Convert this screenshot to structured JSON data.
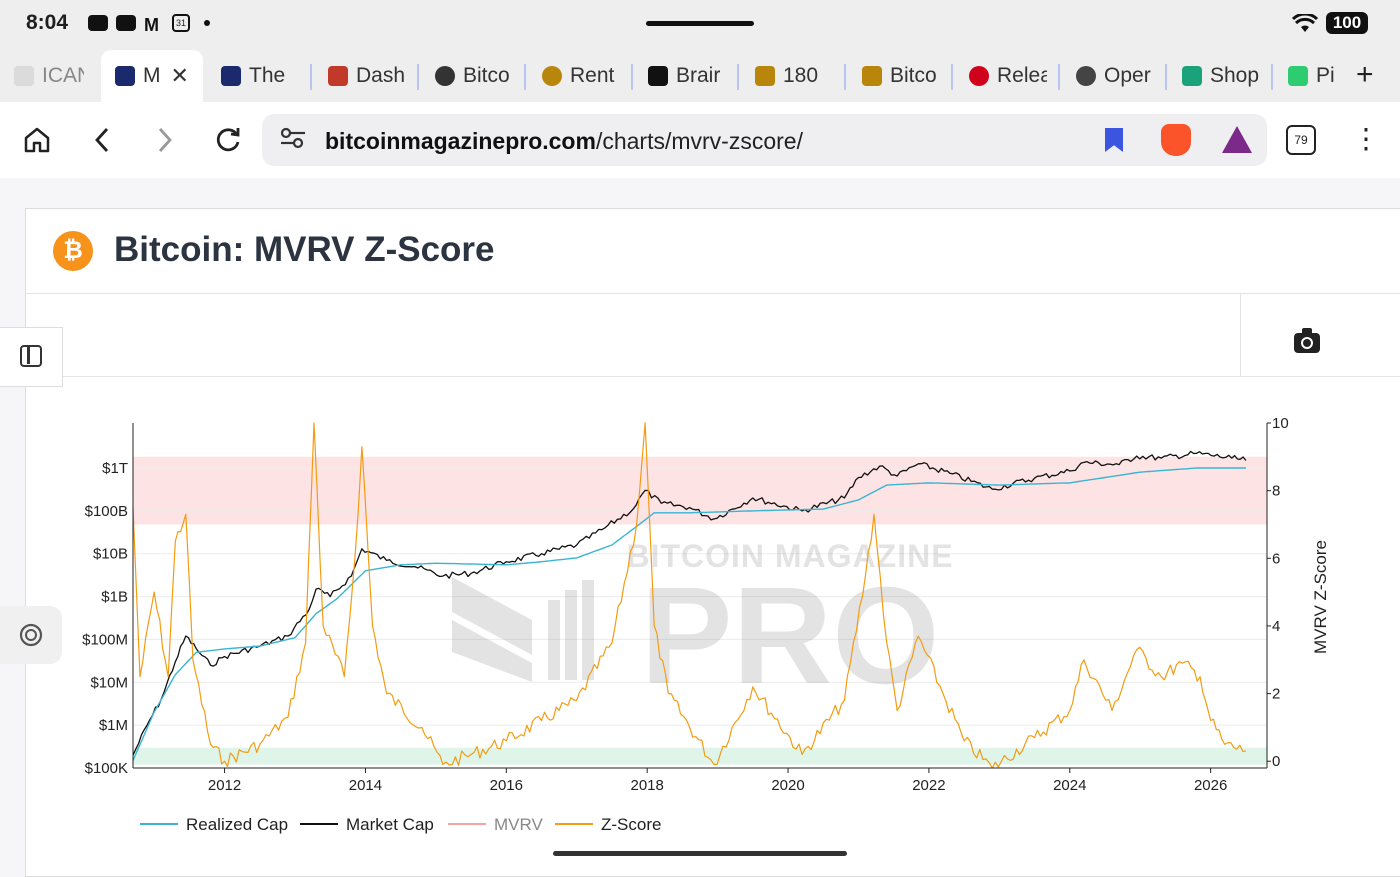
{
  "status_bar": {
    "time": "8:04",
    "battery": "100"
  },
  "tabs": [
    {
      "label": "ICAN",
      "favicon_color": "#cccccc"
    },
    {
      "label": "M",
      "favicon_color": "#1a2a6c",
      "active": true
    },
    {
      "label": "The",
      "favicon_color": "#1a2a6c"
    },
    {
      "label": "Dash",
      "favicon_color": "#c0392b"
    },
    {
      "label": "Bitco",
      "favicon_color": "#333333"
    },
    {
      "label": "Rent",
      "favicon_color": "#b8860b"
    },
    {
      "label": "Brair",
      "favicon_color": "#111111"
    },
    {
      "label": "180",
      "favicon_color": "#b8860b"
    },
    {
      "label": "Bitco",
      "favicon_color": "#b8860b"
    },
    {
      "label": "Relea",
      "favicon_color": "#d0021b"
    },
    {
      "label": "Oper",
      "favicon_color": "#444444"
    },
    {
      "label": "Shop",
      "favicon_color": "#1aa37a"
    },
    {
      "label": "Pi",
      "favicon_color": "#2ecc71"
    }
  ],
  "nav": {
    "url_domain": "bitcoinmagazinepro.com",
    "url_path": "/charts/mvrv-zscore/",
    "tab_count": "79"
  },
  "page": {
    "logo_text": "₿",
    "title": "Bitcoin: MVRV Z-Score",
    "watermark_top": "BITCOIN MAGAZINE",
    "watermark_main": "PRO"
  },
  "colors": {
    "realized_cap": "#3ab4d4",
    "market_cap": "#111111",
    "mvrv": "#f5a3a3",
    "zscore": "#f39c12",
    "top_band": "#fde3e3",
    "bottom_band": "#dff5ea"
  },
  "chart_data": {
    "type": "line",
    "title": "",
    "x_axis": {
      "range": [
        2010.7,
        2026.8
      ],
      "ticks": [
        "2012",
        "2014",
        "2016",
        "2018",
        "2020",
        "2022",
        "2024",
        "2026"
      ]
    },
    "y_left": {
      "scale": "log",
      "range_usd": [
        100000000,
        10000000000000
      ],
      "ticks": [
        "$100K",
        "$1M",
        "$10M",
        "$100M",
        "$1B",
        "$10B",
        "$100B",
        "$1T"
      ]
    },
    "y_right": {
      "label": "MVRV Z-Score",
      "range": [
        -0.2,
        10
      ],
      "ticks": [
        "0",
        "2",
        "4",
        "6",
        "8",
        "10"
      ]
    },
    "bands": {
      "top": [
        7,
        9
      ],
      "bottom": [
        -0.1,
        0.4
      ]
    },
    "legend": [
      "Realized Cap",
      "Market Cap",
      "MVRV",
      "Z-Score"
    ],
    "series": [
      {
        "name": "Market Cap",
        "axis": "left",
        "points": [
          [
            2010.7,
            200000
          ],
          [
            2010.9,
            1000000
          ],
          [
            2011.1,
            4000000
          ],
          [
            2011.3,
            30000000
          ],
          [
            2011.45,
            120000000
          ],
          [
            2011.6,
            60000000
          ],
          [
            2011.8,
            25000000
          ],
          [
            2012.0,
            40000000
          ],
          [
            2012.5,
            70000000
          ],
          [
            2012.9,
            120000000
          ],
          [
            2013.2,
            500000000
          ],
          [
            2013.3,
            1500000000
          ],
          [
            2013.5,
            1000000000
          ],
          [
            2013.8,
            3000000000
          ],
          [
            2013.95,
            13000000000
          ],
          [
            2014.3,
            7000000000
          ],
          [
            2014.7,
            5000000000
          ],
          [
            2015.1,
            3000000000
          ],
          [
            2015.5,
            3500000000
          ],
          [
            2016.0,
            6500000000
          ],
          [
            2016.5,
            10000000000
          ],
          [
            2017.0,
            16000000000
          ],
          [
            2017.4,
            40000000000
          ],
          [
            2017.8,
            110000000000
          ],
          [
            2017.97,
            300000000000
          ],
          [
            2018.2,
            150000000000
          ],
          [
            2018.6,
            120000000000
          ],
          [
            2018.95,
            65000000000
          ],
          [
            2019.5,
            200000000000
          ],
          [
            2020.2,
            100000000000
          ],
          [
            2020.8,
            200000000000
          ],
          [
            2021.0,
            600000000000
          ],
          [
            2021.3,
            1100000000000
          ],
          [
            2021.55,
            650000000000
          ],
          [
            2021.85,
            1250000000000
          ],
          [
            2022.3,
            750000000000
          ],
          [
            2022.9,
            320000000000
          ],
          [
            2023.5,
            580000000000
          ],
          [
            2024.0,
            850000000000
          ],
          [
            2024.2,
            1350000000000
          ],
          [
            2024.7,
            1200000000000
          ],
          [
            2024.95,
            1900000000000
          ],
          [
            2025.3,
            1700000000000
          ],
          [
            2025.8,
            2200000000000
          ],
          [
            2026.3,
            1700000000000
          ],
          [
            2026.5,
            1500000000000
          ]
        ]
      },
      {
        "name": "Realized Cap",
        "axis": "left",
        "points": [
          [
            2010.7,
            150000
          ],
          [
            2011.0,
            2000000
          ],
          [
            2011.3,
            15000000
          ],
          [
            2011.6,
            50000000
          ],
          [
            2012.0,
            60000000
          ],
          [
            2012.5,
            70000000
          ],
          [
            2013.0,
            110000000
          ],
          [
            2013.3,
            400000000
          ],
          [
            2013.6,
            900000000
          ],
          [
            2014.0,
            4000000000
          ],
          [
            2014.5,
            5500000000
          ],
          [
            2015.0,
            6000000000
          ],
          [
            2016.0,
            5500000000
          ],
          [
            2016.5,
            6500000000
          ],
          [
            2017.0,
            8000000000
          ],
          [
            2017.5,
            16000000000
          ],
          [
            2017.9,
            50000000000
          ],
          [
            2018.1,
            90000000000
          ],
          [
            2018.6,
            90000000000
          ],
          [
            2019.5,
            100000000000
          ],
          [
            2020.5,
            110000000000
          ],
          [
            2021.0,
            180000000000
          ],
          [
            2021.4,
            400000000000
          ],
          [
            2022.0,
            450000000000
          ],
          [
            2023.0,
            400000000000
          ],
          [
            2024.0,
            450000000000
          ],
          [
            2024.5,
            600000000000
          ],
          [
            2025.0,
            800000000000
          ],
          [
            2025.8,
            1000000000000
          ],
          [
            2026.5,
            1000000000000
          ]
        ]
      },
      {
        "name": "Z-Score",
        "axis": "right",
        "points": [
          [
            2010.7,
            7.5
          ],
          [
            2010.8,
            2.5
          ],
          [
            2011.0,
            5.0
          ],
          [
            2011.2,
            2.5
          ],
          [
            2011.3,
            6.5
          ],
          [
            2011.45,
            7.3
          ],
          [
            2011.55,
            3.0
          ],
          [
            2011.8,
            0.5
          ],
          [
            2012.0,
            0.0
          ],
          [
            2012.5,
            0.5
          ],
          [
            2012.9,
            1.3
          ],
          [
            2013.15,
            3.5
          ],
          [
            2013.27,
            10.0
          ],
          [
            2013.4,
            4.0
          ],
          [
            2013.7,
            2.5
          ],
          [
            2013.85,
            6.0
          ],
          [
            2013.95,
            9.3
          ],
          [
            2014.1,
            4.0
          ],
          [
            2014.3,
            2.0
          ],
          [
            2014.8,
            1.0
          ],
          [
            2015.1,
            -0.1
          ],
          [
            2015.5,
            0.2
          ],
          [
            2016.0,
            0.6
          ],
          [
            2016.5,
            1.2
          ],
          [
            2017.0,
            1.8
          ],
          [
            2017.5,
            3.5
          ],
          [
            2017.85,
            7.0
          ],
          [
            2017.97,
            10.0
          ],
          [
            2018.1,
            4.0
          ],
          [
            2018.3,
            2.0
          ],
          [
            2018.95,
            -0.1
          ],
          [
            2019.5,
            2.2
          ],
          [
            2020.2,
            0.2
          ],
          [
            2020.8,
            1.8
          ],
          [
            2021.1,
            5.5
          ],
          [
            2021.22,
            7.3
          ],
          [
            2021.4,
            3.5
          ],
          [
            2021.55,
            1.5
          ],
          [
            2021.85,
            3.7
          ],
          [
            2022.2,
            2.0
          ],
          [
            2022.5,
            0.6
          ],
          [
            2022.9,
            -0.2
          ],
          [
            2023.5,
            0.7
          ],
          [
            2024.0,
            1.5
          ],
          [
            2024.2,
            3.0
          ],
          [
            2024.6,
            1.5
          ],
          [
            2024.95,
            3.3
          ],
          [
            2025.3,
            2.5
          ],
          [
            2025.6,
            2.9
          ],
          [
            2025.85,
            2.5
          ],
          [
            2026.0,
            1.2
          ],
          [
            2026.2,
            0.5
          ],
          [
            2026.5,
            0.3
          ]
        ]
      }
    ]
  }
}
